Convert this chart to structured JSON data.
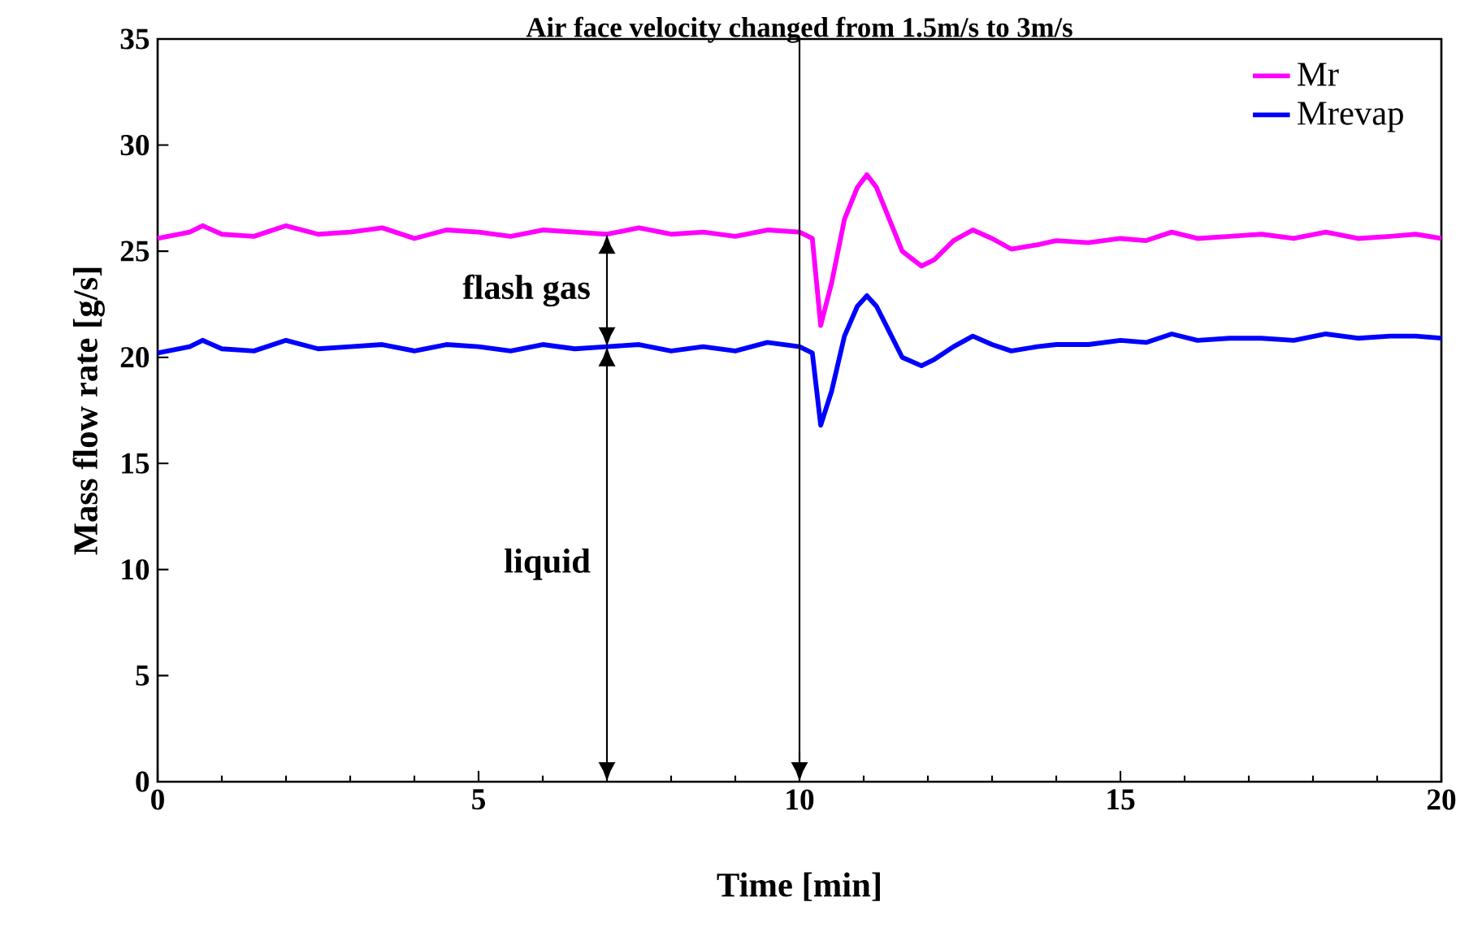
{
  "chart_data": {
    "type": "line",
    "xlabel": "Time  [min]",
    "ylabel": "Mass flow rate [g/s]",
    "xlim": [
      0,
      20
    ],
    "xticks": [
      0,
      5,
      10,
      15,
      20
    ],
    "ylim": [
      0,
      35
    ],
    "yticks": [
      0,
      5,
      10,
      15,
      20,
      25,
      30,
      35
    ],
    "x": [
      0,
      0.5,
      0.7,
      1,
      1.5,
      2,
      2.5,
      3,
      3.5,
      4,
      4.5,
      5,
      5.5,
      6,
      6.5,
      7,
      7.5,
      8,
      8.5,
      9,
      9.5,
      10,
      10.2,
      10.33,
      10.5,
      10.7,
      10.9,
      11.05,
      11.2,
      11.4,
      11.6,
      11.9,
      12.1,
      12.4,
      12.7,
      13,
      13.3,
      13.7,
      14,
      14.5,
      15,
      15.4,
      15.8,
      16.2,
      16.7,
      17.2,
      17.7,
      18.2,
      18.7,
      19.2,
      19.6,
      20
    ],
    "series": [
      {
        "name": "Mr",
        "color": "#ff00ff",
        "values": [
          25.6,
          25.9,
          26.2,
          25.8,
          25.7,
          26.2,
          25.8,
          25.9,
          26.1,
          25.6,
          26.0,
          25.9,
          25.7,
          26.0,
          25.9,
          25.8,
          26.1,
          25.8,
          25.9,
          25.7,
          26.0,
          25.9,
          25.6,
          21.5,
          23.5,
          26.5,
          28.0,
          28.6,
          28.0,
          26.5,
          25.0,
          24.3,
          24.6,
          25.5,
          26.0,
          25.6,
          25.1,
          25.3,
          25.5,
          25.4,
          25.6,
          25.5,
          25.9,
          25.6,
          25.7,
          25.8,
          25.6,
          25.9,
          25.6,
          25.7,
          25.8,
          25.6
        ]
      },
      {
        "name": "Mrevap",
        "color": "#0000ff",
        "values": [
          20.2,
          20.5,
          20.8,
          20.4,
          20.3,
          20.8,
          20.4,
          20.5,
          20.6,
          20.3,
          20.6,
          20.5,
          20.3,
          20.6,
          20.4,
          20.5,
          20.6,
          20.3,
          20.5,
          20.3,
          20.7,
          20.5,
          20.2,
          16.8,
          18.4,
          21.0,
          22.4,
          22.9,
          22.4,
          21.2,
          20.0,
          19.6,
          19.9,
          20.5,
          21.0,
          20.6,
          20.3,
          20.5,
          20.6,
          20.6,
          20.8,
          20.7,
          21.1,
          20.8,
          20.9,
          20.9,
          20.8,
          21.1,
          20.9,
          21.0,
          21.0,
          20.9
        ]
      }
    ],
    "ref_lines": [
      {
        "axis": "x",
        "value": 10,
        "label": "Air face velocity changed from 1.5m/s to 3m/s",
        "color": "#000000"
      }
    ],
    "annotations": [
      "flash gas",
      "liquid"
    ],
    "legend": "top right",
    "grid": false,
    "marker": "none",
    "line_style": "solid"
  }
}
